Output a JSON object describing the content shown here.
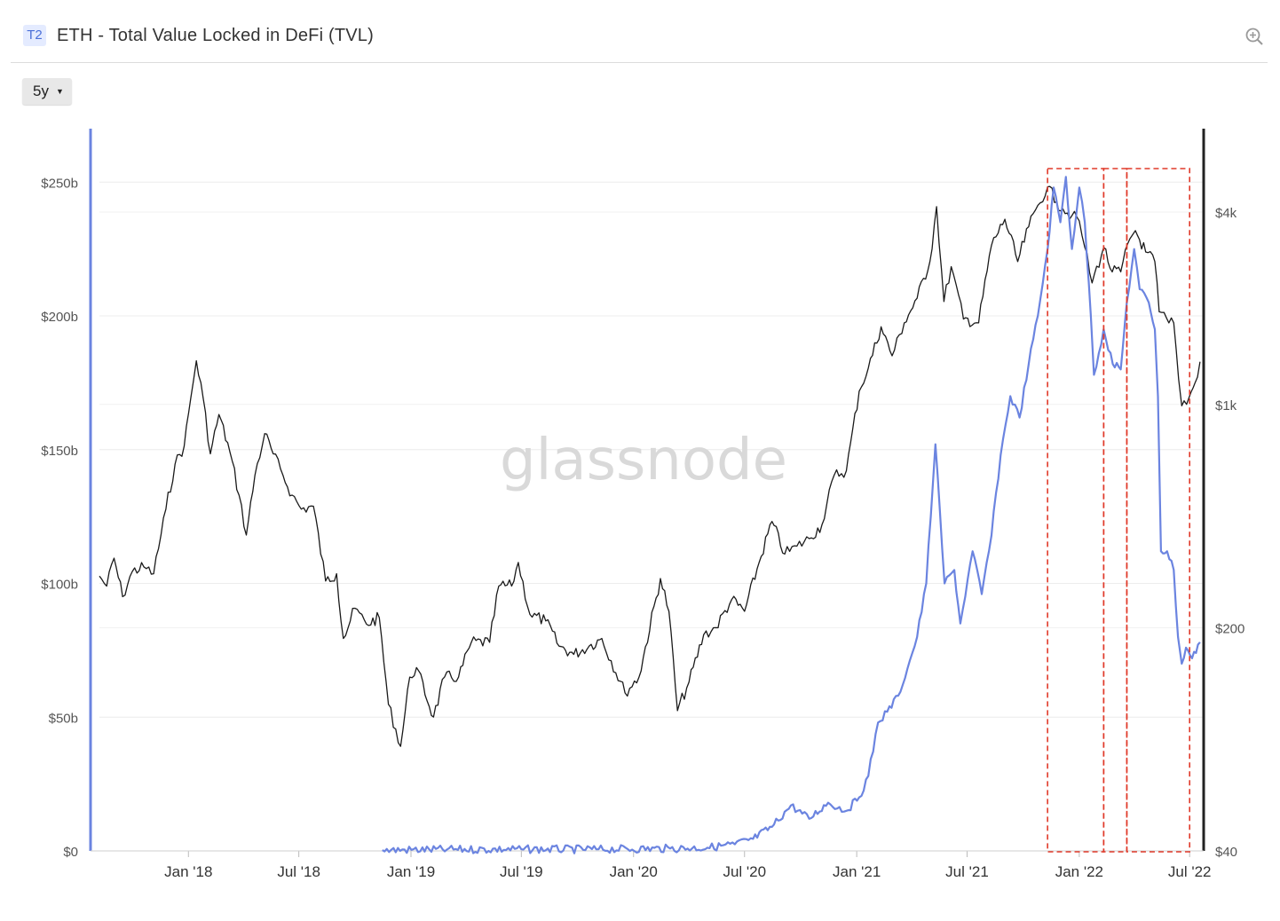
{
  "header": {
    "tier": "T2",
    "title": "ETH - Total Value Locked in DeFi (TVL)"
  },
  "controls": {
    "range_label": "5y"
  },
  "watermark": "glassnode",
  "icons": {
    "zoom": "zoom-in-icon",
    "caret": "caret-down-icon"
  },
  "colors": {
    "tvl": "#6b84e0",
    "price": "#1a1a1a",
    "highlight": "#e03a2a"
  },
  "chart_data": {
    "type": "line",
    "title": "ETH - Total Value Locked in DeFi (TVL)",
    "x_ticks": [
      "Jan '18",
      "Jul '18",
      "Jan '19",
      "Jul '19",
      "Jan '20",
      "Jul '20",
      "Jan '21",
      "Jul '21",
      "Jan '22",
      "Jul '22"
    ],
    "x_tick_dates": [
      "2018-01-01",
      "2018-07-01",
      "2019-01-01",
      "2019-07-01",
      "2020-01-01",
      "2020-07-01",
      "2021-01-01",
      "2021-07-01",
      "2022-01-01",
      "2022-07-01"
    ],
    "x_range": [
      "2017-08-08",
      "2022-07-24"
    ],
    "y_left": {
      "ticks": [
        "$0",
        "$50b",
        "$100b",
        "$150b",
        "$200b",
        "$250b"
      ],
      "ylim": [
        0,
        270
      ],
      "unit": "billion USD"
    },
    "y_right": {
      "ticks": [
        "$40",
        "$200",
        "$1k",
        "$4k"
      ],
      "tick_values": [
        40,
        200,
        1000,
        4000
      ],
      "scale": "log",
      "ylim": [
        40,
        7300
      ],
      "unit": "USD"
    },
    "grid": true,
    "series": [
      {
        "axis": "left",
        "points": [
          [
            "2018-11-15",
            0.3
          ],
          [
            "2019-03-01",
            0.5
          ],
          [
            "2019-07-01",
            0.6
          ],
          [
            "2019-11-01",
            0.6
          ],
          [
            "2020-03-01",
            0.9
          ],
          [
            "2020-05-01",
            1.2
          ],
          [
            "2020-06-15",
            2.5
          ],
          [
            "2020-07-15",
            4.5
          ],
          [
            "2020-08-15",
            9
          ],
          [
            "2020-09-15",
            17
          ],
          [
            "2020-10-15",
            12
          ],
          [
            "2020-11-15",
            18
          ],
          [
            "2020-12-15",
            15
          ],
          [
            "2021-01-05",
            20
          ],
          [
            "2021-01-20",
            28
          ],
          [
            "2021-02-05",
            48
          ],
          [
            "2021-02-20",
            52
          ],
          [
            "2021-03-10",
            58
          ],
          [
            "2021-03-25",
            68
          ],
          [
            "2021-04-10",
            80
          ],
          [
            "2021-04-25",
            100
          ],
          [
            "2021-05-10",
            152
          ],
          [
            "2021-05-25",
            100
          ],
          [
            "2021-06-10",
            105
          ],
          [
            "2021-06-20",
            85
          ],
          [
            "2021-07-10",
            112
          ],
          [
            "2021-07-25",
            96
          ],
          [
            "2021-08-10",
            118
          ],
          [
            "2021-08-25",
            148
          ],
          [
            "2021-09-10",
            170
          ],
          [
            "2021-09-25",
            162
          ],
          [
            "2021-10-10",
            182
          ],
          [
            "2021-10-25",
            200
          ],
          [
            "2021-11-10",
            225
          ],
          [
            "2021-11-20",
            248
          ],
          [
            "2021-12-01",
            235
          ],
          [
            "2021-12-10",
            252
          ],
          [
            "2021-12-20",
            225
          ],
          [
            "2022-01-01",
            248
          ],
          [
            "2022-01-10",
            235
          ],
          [
            "2022-01-20",
            200
          ],
          [
            "2022-01-25",
            178
          ],
          [
            "2022-02-10",
            195
          ],
          [
            "2022-02-25",
            182
          ],
          [
            "2022-03-10",
            180
          ],
          [
            "2022-03-20",
            205
          ],
          [
            "2022-04-01",
            225
          ],
          [
            "2022-04-10",
            210
          ],
          [
            "2022-04-25",
            205
          ],
          [
            "2022-05-05",
            195
          ],
          [
            "2022-05-10",
            170
          ],
          [
            "2022-05-15",
            112
          ],
          [
            "2022-05-25",
            112
          ],
          [
            "2022-06-05",
            105
          ],
          [
            "2022-06-12",
            80
          ],
          [
            "2022-06-18",
            70
          ],
          [
            "2022-06-25",
            76
          ],
          [
            "2022-07-05",
            72
          ],
          [
            "2022-07-18",
            78
          ]
        ]
      },
      {
        "axis": "right",
        "points": [
          [
            "2017-08-08",
            290
          ],
          [
            "2017-08-20",
            270
          ],
          [
            "2017-09-01",
            330
          ],
          [
            "2017-09-15",
            250
          ],
          [
            "2017-10-01",
            300
          ],
          [
            "2017-10-20",
            310
          ],
          [
            "2017-11-05",
            295
          ],
          [
            "2017-11-25",
            470
          ],
          [
            "2017-12-10",
            650
          ],
          [
            "2017-12-25",
            740
          ],
          [
            "2018-01-05",
            1050
          ],
          [
            "2018-01-14",
            1370
          ],
          [
            "2018-01-25",
            1050
          ],
          [
            "2018-02-06",
            700
          ],
          [
            "2018-02-20",
            930
          ],
          [
            "2018-03-10",
            710
          ],
          [
            "2018-03-25",
            520
          ],
          [
            "2018-04-06",
            390
          ],
          [
            "2018-04-20",
            600
          ],
          [
            "2018-05-06",
            810
          ],
          [
            "2018-05-20",
            700
          ],
          [
            "2018-06-05",
            600
          ],
          [
            "2018-06-20",
            520
          ],
          [
            "2018-07-05",
            470
          ],
          [
            "2018-07-25",
            480
          ],
          [
            "2018-08-14",
            280
          ],
          [
            "2018-09-01",
            295
          ],
          [
            "2018-09-12",
            185
          ],
          [
            "2018-10-01",
            230
          ],
          [
            "2018-10-20",
            205
          ],
          [
            "2018-11-10",
            215
          ],
          [
            "2018-11-25",
            115
          ],
          [
            "2018-12-15",
            85
          ],
          [
            "2018-12-30",
            140
          ],
          [
            "2019-01-10",
            150
          ],
          [
            "2019-02-07",
            105
          ],
          [
            "2019-02-25",
            140
          ],
          [
            "2019-03-20",
            140
          ],
          [
            "2019-04-10",
            180
          ],
          [
            "2019-05-10",
            180
          ],
          [
            "2019-05-25",
            270
          ],
          [
            "2019-06-15",
            270
          ],
          [
            "2019-06-26",
            320
          ],
          [
            "2019-07-15",
            220
          ],
          [
            "2019-08-10",
            210
          ],
          [
            "2019-09-01",
            175
          ],
          [
            "2019-09-25",
            165
          ],
          [
            "2019-10-20",
            175
          ],
          [
            "2019-11-10",
            185
          ],
          [
            "2019-12-18",
            125
          ],
          [
            "2020-01-10",
            140
          ],
          [
            "2020-02-14",
            285
          ],
          [
            "2020-02-28",
            225
          ],
          [
            "2020-03-13",
            110
          ],
          [
            "2020-04-01",
            135
          ],
          [
            "2020-04-25",
            190
          ],
          [
            "2020-05-15",
            200
          ],
          [
            "2020-06-10",
            245
          ],
          [
            "2020-07-01",
            225
          ],
          [
            "2020-07-25",
            320
          ],
          [
            "2020-08-15",
            430
          ],
          [
            "2020-09-05",
            340
          ],
          [
            "2020-09-25",
            360
          ],
          [
            "2020-10-15",
            380
          ],
          [
            "2020-11-05",
            420
          ],
          [
            "2020-11-25",
            600
          ],
          [
            "2020-12-15",
            620
          ],
          [
            "2021-01-05",
            1100
          ],
          [
            "2021-01-20",
            1300
          ],
          [
            "2021-02-10",
            1750
          ],
          [
            "2021-02-28",
            1420
          ],
          [
            "2021-03-20",
            1800
          ],
          [
            "2021-04-10",
            2150
          ],
          [
            "2021-05-01",
            2800
          ],
          [
            "2021-05-12",
            4160
          ],
          [
            "2021-05-24",
            2100
          ],
          [
            "2021-06-05",
            2700
          ],
          [
            "2021-06-25",
            1850
          ],
          [
            "2021-07-20",
            1800
          ],
          [
            "2021-08-10",
            3150
          ],
          [
            "2021-09-01",
            3800
          ],
          [
            "2021-09-22",
            2800
          ],
          [
            "2021-10-10",
            3600
          ],
          [
            "2021-10-25",
            4200
          ],
          [
            "2021-11-10",
            4800
          ],
          [
            "2021-11-25",
            4300
          ],
          [
            "2021-12-05",
            4100
          ],
          [
            "2021-12-20",
            3900
          ],
          [
            "2022-01-01",
            3750
          ],
          [
            "2022-01-10",
            3100
          ],
          [
            "2022-01-22",
            2400
          ],
          [
            "2022-02-10",
            3100
          ],
          [
            "2022-02-24",
            2600
          ],
          [
            "2022-03-10",
            2600
          ],
          [
            "2022-03-25",
            3300
          ],
          [
            "2022-04-03",
            3500
          ],
          [
            "2022-04-20",
            3000
          ],
          [
            "2022-05-05",
            2800
          ],
          [
            "2022-05-12",
            1950
          ],
          [
            "2022-05-28",
            1800
          ],
          [
            "2022-06-05",
            1800
          ],
          [
            "2022-06-13",
            1200
          ],
          [
            "2022-06-18",
            990
          ],
          [
            "2022-06-30",
            1050
          ],
          [
            "2022-07-10",
            1170
          ],
          [
            "2022-07-18",
            1360
          ]
        ]
      }
    ],
    "highlights": [
      {
        "from": "2021-11-10",
        "to": "2022-02-10"
      },
      {
        "from": "2022-02-10",
        "to": "2022-03-20"
      },
      {
        "from": "2022-03-20",
        "to": "2022-07-01"
      }
    ]
  }
}
